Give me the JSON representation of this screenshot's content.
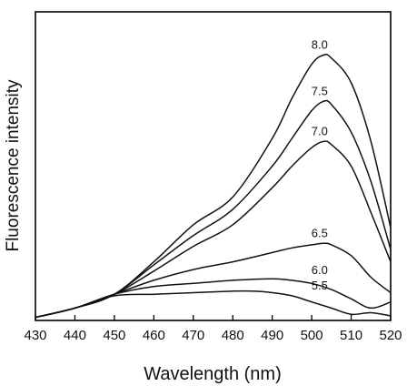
{
  "chart_data": {
    "type": "line",
    "title": "",
    "xlabel": "Wavelength (nm)",
    "ylabel": "Fluorescence intensity",
    "xlim": [
      430,
      520
    ],
    "ylim": [
      0,
      100
    ],
    "y_ticks_labeled": false,
    "grid": false,
    "legend": "none (curves labeled directly near peaks)",
    "x_ticks": [
      430,
      440,
      450,
      460,
      470,
      480,
      490,
      500,
      510,
      520
    ],
    "series": [
      {
        "name": "8.0",
        "x": [
          430,
          440,
          450,
          460,
          470,
          480,
          490,
          495,
          500,
          503,
          505,
          510,
          515,
          520
        ],
        "y": [
          1,
          4,
          8.5,
          19,
          31,
          40,
          59,
          72,
          83,
          86,
          85,
          77,
          58,
          30
        ]
      },
      {
        "name": "7.5",
        "x": [
          430,
          440,
          450,
          460,
          470,
          480,
          490,
          495,
          500,
          503,
          505,
          510,
          515,
          520
        ],
        "y": [
          1,
          4,
          8.5,
          18,
          27.5,
          36,
          50,
          59,
          68,
          71,
          70,
          61,
          45,
          23
        ]
      },
      {
        "name": "7.0",
        "x": [
          430,
          440,
          450,
          460,
          470,
          480,
          490,
          495,
          500,
          503,
          505,
          510,
          515,
          520
        ],
        "y": [
          1,
          4,
          8.5,
          16,
          24,
          31,
          43,
          50,
          56,
          58,
          57,
          50,
          35,
          19
        ]
      },
      {
        "name": "6.5",
        "x": [
          430,
          440,
          450,
          460,
          470,
          480,
          490,
          495,
          500,
          503,
          505,
          510,
          515,
          520
        ],
        "y": [
          1,
          4,
          8.5,
          13,
          16.5,
          19,
          22,
          23.5,
          24.5,
          25,
          24.5,
          21,
          14,
          9
        ]
      },
      {
        "name": "6.0",
        "x": [
          430,
          440,
          450,
          460,
          470,
          480,
          490,
          495,
          500,
          505,
          510,
          515,
          520
        ],
        "y": [
          1,
          4,
          8.5,
          11,
          12,
          13,
          13.5,
          13,
          12,
          10,
          7,
          4,
          6
        ]
      },
      {
        "name": "5.5",
        "x": [
          430,
          440,
          450,
          460,
          470,
          480,
          485,
          490,
          495,
          500,
          505,
          510,
          515,
          520
        ],
        "y": [
          1,
          4,
          8,
          8.5,
          9,
          9.5,
          9.5,
          9,
          8,
          6,
          4,
          2,
          2.5,
          1.5
        ]
      }
    ]
  }
}
